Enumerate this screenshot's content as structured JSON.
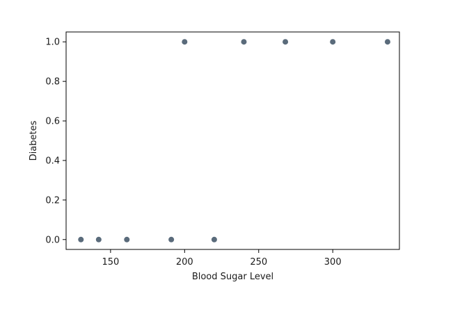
{
  "chart_data": {
    "type": "scatter",
    "title": "",
    "xlabel": "Blood Sugar Level",
    "ylabel": "Diabetes",
    "xlim": [
      120,
      345
    ],
    "ylim": [
      -0.05,
      1.05
    ],
    "xticks": [
      150,
      200,
      250,
      300
    ],
    "yticks": [
      0.0,
      0.2,
      0.4,
      0.6,
      0.8,
      1.0
    ],
    "xtick_labels": [
      "150",
      "200",
      "250",
      "300"
    ],
    "ytick_labels": [
      "0.0",
      "0.2",
      "0.4",
      "0.6",
      "0.8",
      "1.0"
    ],
    "grid": false,
    "point_color": "#5a6b7b",
    "points": [
      {
        "x": 130,
        "y": 0
      },
      {
        "x": 142,
        "y": 0
      },
      {
        "x": 161,
        "y": 0
      },
      {
        "x": 191,
        "y": 0
      },
      {
        "x": 200,
        "y": 1
      },
      {
        "x": 220,
        "y": 0
      },
      {
        "x": 240,
        "y": 1
      },
      {
        "x": 268,
        "y": 1
      },
      {
        "x": 300,
        "y": 1
      },
      {
        "x": 337,
        "y": 1
      }
    ]
  }
}
